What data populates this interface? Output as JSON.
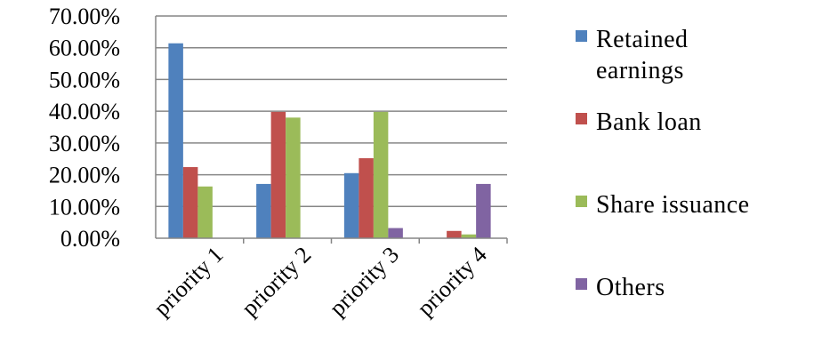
{
  "chart_data": {
    "type": "bar",
    "categories": [
      "priority 1",
      "priority 2",
      "priority 3",
      "priority 4"
    ],
    "series": [
      {
        "name": "Retained earnings",
        "color": "#4F81BD",
        "values": [
          61.4,
          17.1,
          20.5,
          0.0
        ]
      },
      {
        "name": "Bank loan",
        "color": "#C0504D",
        "values": [
          22.4,
          39.8,
          25.2,
          2.3
        ]
      },
      {
        "name": "Share issuance",
        "color": "#9BBB59",
        "values": [
          16.3,
          38.0,
          39.8,
          1.2
        ]
      },
      {
        "name": "Others",
        "color": "#8064A2",
        "values": [
          0.0,
          0.0,
          3.2,
          17.1
        ]
      }
    ],
    "legend_lines": [
      [
        "Retained",
        "earnings"
      ],
      [
        "Bank loan"
      ],
      [
        "Share issuance"
      ],
      [
        "Others"
      ]
    ],
    "yticks": [
      "0.00%",
      "10.00%",
      "20.00%",
      "30.00%",
      "40.00%",
      "50.00%",
      "60.00%",
      "70.00%"
    ],
    "ylim": [
      0,
      70
    ],
    "grid": true,
    "legend_position": "right"
  }
}
